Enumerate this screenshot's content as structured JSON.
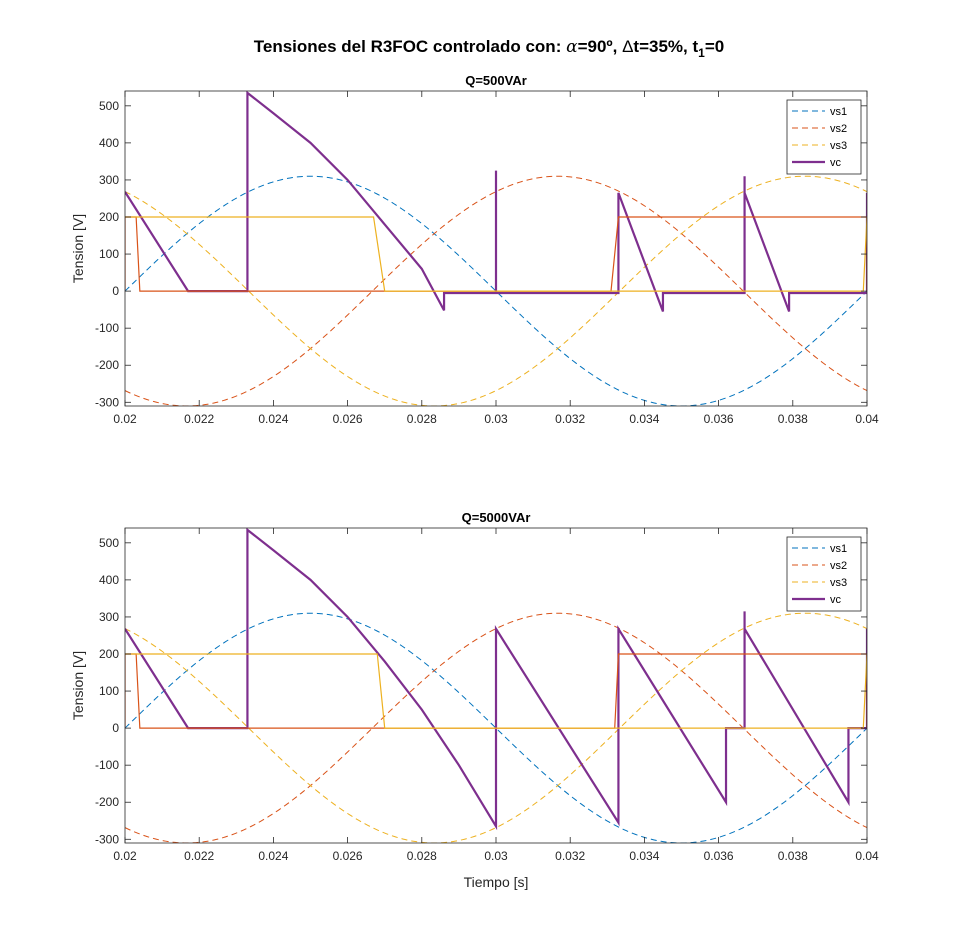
{
  "figure": {
    "title_main": "Tensiones del R3FOC controlado con: ",
    "title_alpha": "α",
    "title_alpha_eq": "=90º, ",
    "title_delta": "Δ",
    "title_dt": "t=35%, t",
    "title_sub": "1",
    "title_end": "=0",
    "xlabel": "Tiempo [s]"
  },
  "colors": {
    "vs1": "#0072BD",
    "vs2": "#D95319",
    "vs3": "#EDB120",
    "vc": "#7E2F8E"
  },
  "chart_data": [
    {
      "type": "line",
      "title": "Q=500VAr",
      "xlabel": "",
      "ylabel": "Tension [V]",
      "xlim": [
        0.02,
        0.04
      ],
      "ylim": [
        -310,
        540
      ],
      "xticks": [
        0.02,
        0.022,
        0.024,
        0.026,
        0.028,
        0.03,
        0.032,
        0.034,
        0.036,
        0.038,
        0.04
      ],
      "xtick_labels": [
        "0.02",
        "0.022",
        "0.024",
        "0.026",
        "0.028",
        "0.03",
        "0.032",
        "0.034",
        "0.036",
        "0.038",
        "0.04"
      ],
      "yticks": [
        -300,
        -200,
        -100,
        0,
        100,
        200,
        300,
        400,
        500
      ],
      "ytick_labels": [
        "-300",
        "-200",
        "-100",
        "0",
        "100",
        "200",
        "300",
        "400",
        "500"
      ],
      "grid": false,
      "legend": "top-right",
      "series": [
        {
          "name": "vs1",
          "style": "dashed",
          "amplitude": 310,
          "frequency_hz": 50,
          "phase_deg": 0
        },
        {
          "name": "vs2",
          "style": "dashed",
          "amplitude": 310,
          "frequency_hz": 50,
          "phase_deg": -120
        },
        {
          "name": "vs3",
          "style": "dashed",
          "amplitude": 310,
          "frequency_hz": 50,
          "phase_deg": 120
        },
        {
          "name": "vc",
          "style": "solid",
          "points": [
            [
              0.02,
              268
            ],
            [
              0.0217,
              0
            ],
            [
              0.0227,
              0
            ],
            [
              0.0233,
              0
            ],
            [
              0.0233,
              535
            ],
            [
              0.024,
              480
            ],
            [
              0.025,
              400
            ],
            [
              0.026,
              300
            ],
            [
              0.027,
              180
            ],
            [
              0.028,
              60
            ],
            [
              0.0286,
              -52
            ],
            [
              0.0286,
              -5
            ],
            [
              0.03,
              -5
            ],
            [
              0.03,
              325
            ],
            [
              0.03,
              -5
            ],
            [
              0.0333,
              -5
            ],
            [
              0.0333,
              265
            ],
            [
              0.0345,
              -55
            ],
            [
              0.0345,
              -5
            ],
            [
              0.0367,
              -5
            ],
            [
              0.0367,
              310
            ],
            [
              0.0367,
              265
            ],
            [
              0.0379,
              -55
            ],
            [
              0.0379,
              -5
            ],
            [
              0.04,
              -5
            ],
            [
              0.04,
              265
            ]
          ]
        },
        {
          "name": "",
          "color_key": "vs2",
          "style": "solid-thin",
          "points": [
            [
              0.02,
              0
            ],
            [
              0.02,
              200
            ],
            [
              0.0203,
              200
            ],
            [
              0.0204,
              0
            ],
            [
              0.0331,
              0
            ],
            [
              0.0333,
              200
            ],
            [
              0.04,
              200
            ],
            [
              0.04,
              0
            ]
          ]
        },
        {
          "name": "",
          "color_key": "vs3",
          "style": "solid-thin",
          "points": [
            [
              0.02,
              200
            ],
            [
              0.0267,
              200
            ],
            [
              0.027,
              0
            ],
            [
              0.0399,
              0
            ],
            [
              0.04,
              200
            ]
          ]
        }
      ]
    },
    {
      "type": "line",
      "title": "Q=5000VAr",
      "xlabel": "Tiempo [s]",
      "ylabel": "Tension [V]",
      "xlim": [
        0.02,
        0.04
      ],
      "ylim": [
        -310,
        540
      ],
      "xticks": [
        0.02,
        0.022,
        0.024,
        0.026,
        0.028,
        0.03,
        0.032,
        0.034,
        0.036,
        0.038,
        0.04
      ],
      "xtick_labels": [
        "0.02",
        "0.022",
        "0.024",
        "0.026",
        "0.028",
        "0.03",
        "0.032",
        "0.034",
        "0.036",
        "0.038",
        "0.04"
      ],
      "yticks": [
        -300,
        -200,
        -100,
        0,
        100,
        200,
        300,
        400,
        500
      ],
      "ytick_labels": [
        "-300",
        "-200",
        "-100",
        "0",
        "100",
        "200",
        "300",
        "400",
        "500"
      ],
      "grid": false,
      "legend": "top-right",
      "series": [
        {
          "name": "vs1",
          "style": "dashed",
          "amplitude": 310,
          "frequency_hz": 50,
          "phase_deg": 0
        },
        {
          "name": "vs2",
          "style": "dashed",
          "amplitude": 310,
          "frequency_hz": 50,
          "phase_deg": -120
        },
        {
          "name": "vs3",
          "style": "dashed",
          "amplitude": 310,
          "frequency_hz": 50,
          "phase_deg": 120
        },
        {
          "name": "vc",
          "style": "solid",
          "points": [
            [
              0.02,
              268
            ],
            [
              0.0217,
              0
            ],
            [
              0.0233,
              0
            ],
            [
              0.0233,
              535
            ],
            [
              0.024,
              480
            ],
            [
              0.025,
              400
            ],
            [
              0.026,
              300
            ],
            [
              0.027,
              180
            ],
            [
              0.028,
              50
            ],
            [
              0.029,
              -100
            ],
            [
              0.03,
              -265
            ],
            [
              0.03,
              268
            ],
            [
              0.0333,
              -255
            ],
            [
              0.0333,
              268
            ],
            [
              0.0362,
              -200
            ],
            [
              0.0362,
              0
            ],
            [
              0.0367,
              0
            ],
            [
              0.0367,
              315
            ],
            [
              0.0367,
              268
            ],
            [
              0.0395,
              -200
            ],
            [
              0.0395,
              0
            ],
            [
              0.04,
              0
            ],
            [
              0.04,
              268
            ]
          ]
        },
        {
          "name": "",
          "color_key": "vs2",
          "style": "solid-thin",
          "points": [
            [
              0.02,
              0
            ],
            [
              0.02,
              200
            ],
            [
              0.0203,
              200
            ],
            [
              0.0204,
              0
            ],
            [
              0.0332,
              0
            ],
            [
              0.0333,
              200
            ],
            [
              0.04,
              200
            ],
            [
              0.04,
              0
            ]
          ]
        },
        {
          "name": "",
          "color_key": "vs3",
          "style": "solid-thin",
          "points": [
            [
              0.02,
              200
            ],
            [
              0.0268,
              200
            ],
            [
              0.027,
              0
            ],
            [
              0.0399,
              0
            ],
            [
              0.04,
              200
            ]
          ]
        }
      ]
    }
  ]
}
